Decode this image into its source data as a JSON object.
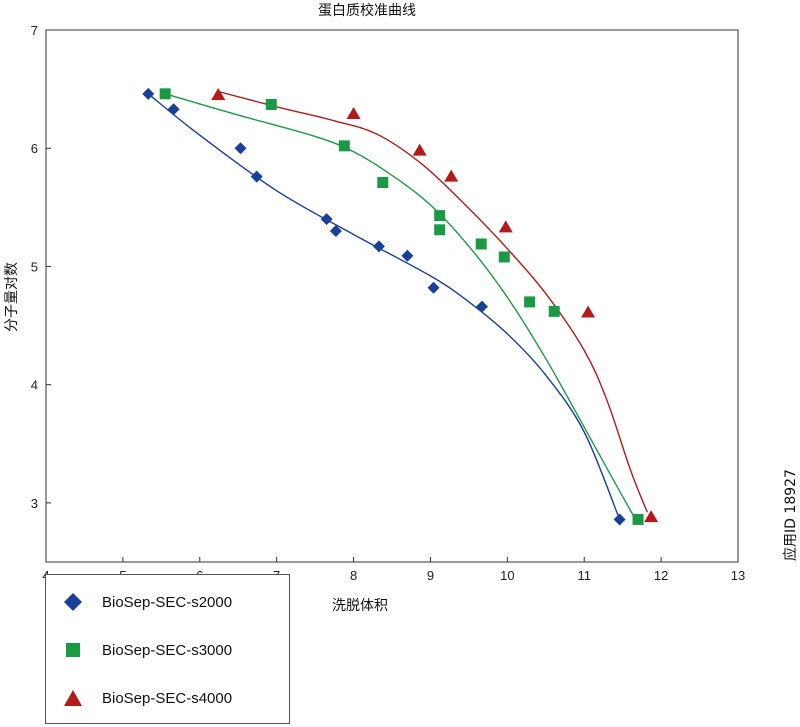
{
  "side_note": "应用ID 18927",
  "colors": {
    "series1": "#1a3f99",
    "series2": "#1a9a44",
    "series3": "#b31b1b"
  },
  "chart_data": {
    "type": "scatter",
    "title": "蛋白质校准曲线",
    "xlabel": "洗脱体积",
    "ylabel": "分子量对数",
    "xlim": [
      4,
      13
    ],
    "ylim": [
      2.5,
      7
    ],
    "xticks": [
      4,
      5,
      6,
      7,
      8,
      9,
      10,
      11,
      12,
      13
    ],
    "yticks": [
      3,
      4,
      5,
      6,
      7
    ],
    "grid": false,
    "legend_position": "bottom-left",
    "series": [
      {
        "name": "BioSep-SEC-s2000",
        "marker": "diamond",
        "points": [
          [
            5.33,
            6.46
          ],
          [
            5.66,
            6.33
          ],
          [
            6.53,
            6.0
          ],
          [
            6.74,
            5.76
          ],
          [
            7.65,
            5.4
          ],
          [
            7.77,
            5.3
          ],
          [
            8.33,
            5.17
          ],
          [
            8.7,
            5.09
          ],
          [
            9.04,
            4.82
          ],
          [
            9.67,
            4.66
          ],
          [
            11.46,
            2.86
          ]
        ],
        "curve": [
          [
            5.33,
            6.46
          ],
          [
            6.0,
            6.11
          ],
          [
            7.0,
            5.64
          ],
          [
            8.0,
            5.27
          ],
          [
            9.0,
            4.92
          ],
          [
            9.5,
            4.7
          ],
          [
            10.0,
            4.43
          ],
          [
            10.5,
            4.08
          ],
          [
            11.0,
            3.6
          ],
          [
            11.46,
            2.86
          ]
        ]
      },
      {
        "name": "BioSep-SEC-s3000",
        "marker": "square",
        "points": [
          [
            5.55,
            6.46
          ],
          [
            6.93,
            6.37
          ],
          [
            7.88,
            6.02
          ],
          [
            8.38,
            5.71
          ],
          [
            9.12,
            5.43
          ],
          [
            9.12,
            5.31
          ],
          [
            9.66,
            5.19
          ],
          [
            9.96,
            5.08
          ],
          [
            10.29,
            4.7
          ],
          [
            10.61,
            4.62
          ],
          [
            11.7,
            2.86
          ]
        ],
        "curve": [
          [
            5.55,
            6.46
          ],
          [
            6.5,
            6.28
          ],
          [
            7.5,
            6.1
          ],
          [
            8.0,
            5.97
          ],
          [
            8.5,
            5.77
          ],
          [
            9.0,
            5.52
          ],
          [
            9.5,
            5.17
          ],
          [
            10.0,
            4.74
          ],
          [
            10.5,
            4.22
          ],
          [
            11.0,
            3.64
          ],
          [
            11.4,
            3.17
          ],
          [
            11.65,
            2.88
          ]
        ],
        "show_curve": true
      },
      {
        "name": "BioSep-SEC-s4000",
        "marker": "triangle",
        "points": [
          [
            6.24,
            6.45
          ],
          [
            8.0,
            6.29
          ],
          [
            8.86,
            5.98
          ],
          [
            9.27,
            5.76
          ],
          [
            9.98,
            5.33
          ],
          [
            11.05,
            4.61
          ],
          [
            11.87,
            2.88
          ]
        ],
        "curve": [
          [
            6.24,
            6.48
          ],
          [
            7.0,
            6.35
          ],
          [
            7.7,
            6.24
          ],
          [
            8.3,
            6.12
          ],
          [
            8.9,
            5.86
          ],
          [
            9.5,
            5.49
          ],
          [
            10.0,
            5.15
          ],
          [
            10.5,
            4.77
          ],
          [
            11.0,
            4.29
          ],
          [
            11.3,
            3.86
          ],
          [
            11.6,
            3.28
          ],
          [
            11.82,
            2.92
          ]
        ]
      }
    ]
  }
}
